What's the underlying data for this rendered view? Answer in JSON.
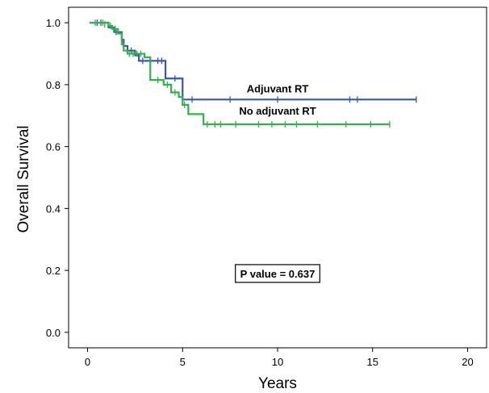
{
  "chart_data": {
    "type": "line",
    "title": "",
    "xlabel": "Years",
    "ylabel": "Overall Survival",
    "xlim": [
      -1,
      21
    ],
    "ylim": [
      -0.05,
      1.05
    ],
    "x_ticks": [
      0,
      5,
      10,
      15,
      20
    ],
    "y_ticks": [
      0.0,
      0.2,
      0.4,
      0.6,
      0.8,
      1.0
    ],
    "x_tick_labels": [
      "0",
      "5",
      "10",
      "15",
      "20"
    ],
    "y_tick_labels": [
      "0.0",
      "0.2",
      "0.4",
      "0.6",
      "0.8",
      "1.0"
    ],
    "grid": false,
    "step": true,
    "series": [
      {
        "name": "Adjuvant RT",
        "color": "#3c56a8",
        "steps": [
          [
            0.1,
            1.0
          ],
          [
            1.1,
            0.985
          ],
          [
            1.4,
            0.97
          ],
          [
            1.8,
            0.945
          ],
          [
            1.9,
            0.925
          ],
          [
            2.1,
            0.91
          ],
          [
            2.5,
            0.895
          ],
          [
            2.7,
            0.877
          ],
          [
            4.1,
            0.82
          ],
          [
            5.0,
            0.752
          ],
          [
            17.3,
            0.752
          ]
        ],
        "censored": [
          [
            0.5,
            1.0
          ],
          [
            0.7,
            1.0
          ],
          [
            1.5,
            0.97
          ],
          [
            2.3,
            0.91
          ],
          [
            2.9,
            0.877
          ],
          [
            3.3,
            0.877
          ],
          [
            3.7,
            0.877
          ],
          [
            3.9,
            0.877
          ],
          [
            4.6,
            0.82
          ],
          [
            5.5,
            0.752
          ],
          [
            7.5,
            0.752
          ],
          [
            10.0,
            0.752
          ],
          [
            13.8,
            0.752
          ],
          [
            14.2,
            0.752
          ],
          [
            17.3,
            0.752
          ]
        ]
      },
      {
        "name": "No adjuvant RT",
        "color": "#2fb34a",
        "steps": [
          [
            0.1,
            1.0
          ],
          [
            1.1,
            0.99
          ],
          [
            1.3,
            0.98
          ],
          [
            1.6,
            0.965
          ],
          [
            1.8,
            0.93
          ],
          [
            1.9,
            0.91
          ],
          [
            2.1,
            0.9
          ],
          [
            3.0,
            0.888
          ],
          [
            3.3,
            0.815
          ],
          [
            4.0,
            0.8
          ],
          [
            4.4,
            0.775
          ],
          [
            4.8,
            0.76
          ],
          [
            5.0,
            0.735
          ],
          [
            5.3,
            0.705
          ],
          [
            6.1,
            0.672
          ],
          [
            15.9,
            0.672
          ]
        ],
        "censored": [
          [
            0.4,
            1.0
          ],
          [
            0.8,
            1.0
          ],
          [
            0.9,
            0.995
          ],
          [
            1.2,
            0.99
          ],
          [
            1.45,
            0.98
          ],
          [
            2.2,
            0.9
          ],
          [
            2.4,
            0.9
          ],
          [
            2.6,
            0.9
          ],
          [
            2.8,
            0.9
          ],
          [
            3.7,
            0.815
          ],
          [
            4.2,
            0.8
          ],
          [
            4.6,
            0.775
          ],
          [
            5.1,
            0.735
          ],
          [
            6.3,
            0.672
          ],
          [
            6.7,
            0.672
          ],
          [
            7.0,
            0.672
          ],
          [
            7.8,
            0.672
          ],
          [
            9.0,
            0.672
          ],
          [
            9.7,
            0.672
          ],
          [
            10.4,
            0.672
          ],
          [
            11.0,
            0.672
          ],
          [
            12.1,
            0.672
          ],
          [
            13.6,
            0.672
          ],
          [
            14.9,
            0.672
          ],
          [
            15.9,
            0.672
          ]
        ]
      }
    ],
    "annotations": [
      {
        "text": "Adjuvant RT",
        "x": 10,
        "y": 0.775
      },
      {
        "text": "No adjuvant RT",
        "x": 10,
        "y": 0.703
      }
    ],
    "p_value_text": "P value = 0.637",
    "p_value_position": {
      "x": 10,
      "y": 0.19
    }
  }
}
